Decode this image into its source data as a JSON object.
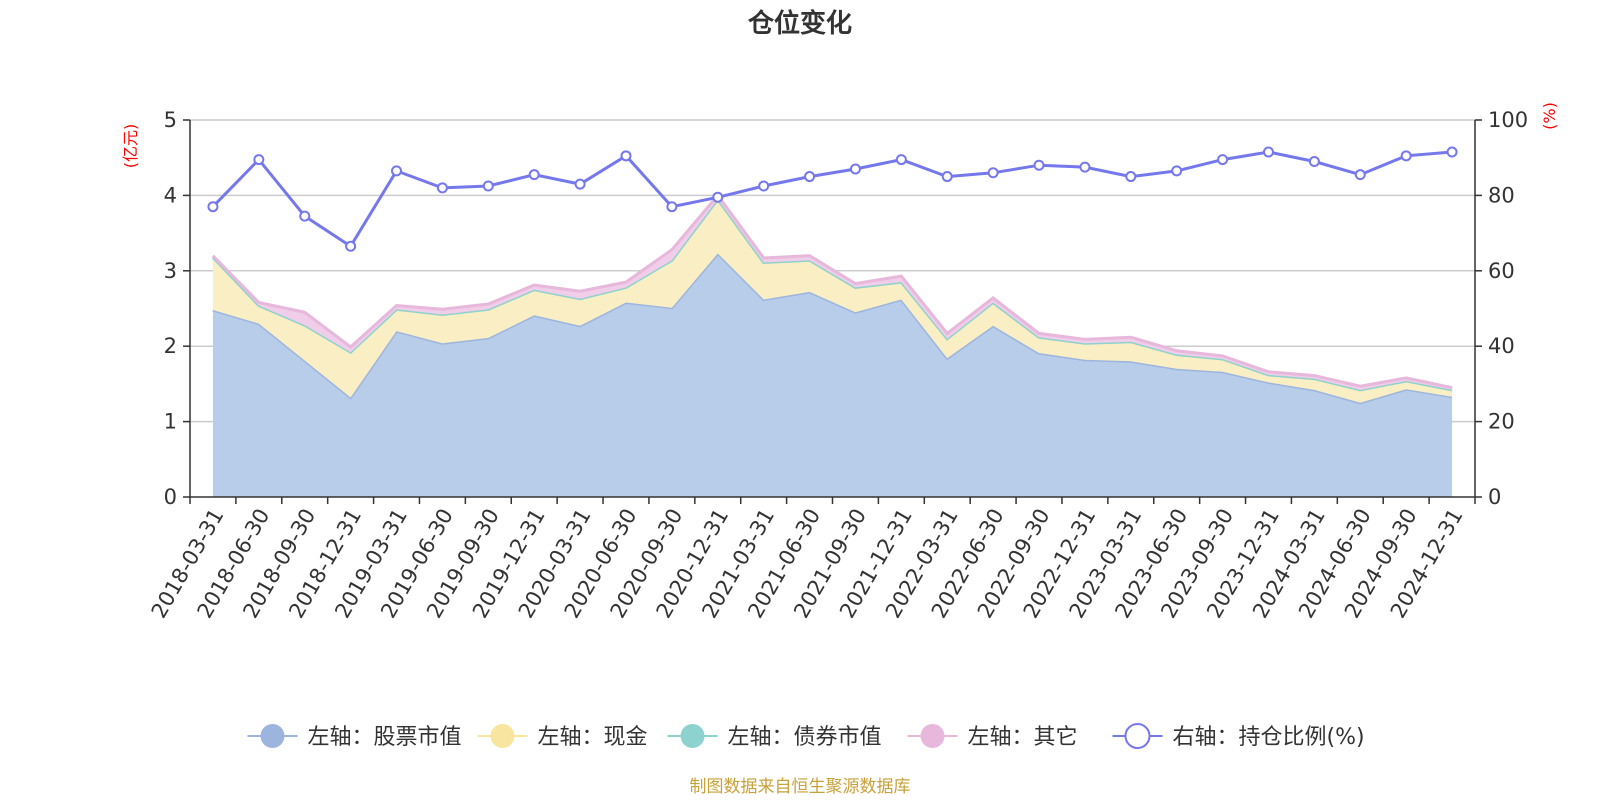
{
  "chart_data": {
    "type": "area",
    "title": "仓位变化",
    "left_axis": {
      "unit": "(亿元)",
      "ylim": [
        0,
        5
      ],
      "ticks": [
        "0",
        "1",
        "2",
        "3",
        "4",
        "5"
      ]
    },
    "right_axis": {
      "unit": "(%)",
      "ylim": [
        0,
        100
      ],
      "ticks": [
        "0",
        "20",
        "40",
        "60",
        "80",
        "100"
      ]
    },
    "categories": [
      "2018-03-31",
      "2018-06-30",
      "2018-09-30",
      "2018-12-31",
      "2019-03-31",
      "2019-06-30",
      "2019-09-30",
      "2019-12-31",
      "2020-03-31",
      "2020-06-30",
      "2020-09-30",
      "2020-12-31",
      "2021-03-31",
      "2021-06-30",
      "2021-09-30",
      "2021-12-31",
      "2022-03-31",
      "2022-06-30",
      "2022-09-30",
      "2022-12-31",
      "2023-03-31",
      "2023-06-30",
      "2023-09-30",
      "2023-12-31",
      "2024-03-31",
      "2024-06-30",
      "2024-09-30",
      "2024-12-31"
    ],
    "series": [
      {
        "name": "左轴：股票市值",
        "axis": "left",
        "stack": true,
        "color": "#9db5de",
        "fill": "#b8cdea",
        "values": [
          2.48,
          2.3,
          1.81,
          1.32,
          2.2,
          2.04,
          2.11,
          2.41,
          2.27,
          2.58,
          2.51,
          3.23,
          2.62,
          2.72,
          2.45,
          2.62,
          1.84,
          2.27,
          1.91,
          1.82,
          1.8,
          1.7,
          1.66,
          1.52,
          1.42,
          1.25,
          1.43,
          1.33
        ]
      },
      {
        "name": "左轴：现金",
        "axis": "left",
        "stack": true,
        "color": "#f8e6a0",
        "fill": "#faefc4",
        "values": [
          0.7,
          0.24,
          0.47,
          0.6,
          0.29,
          0.38,
          0.38,
          0.34,
          0.36,
          0.2,
          0.63,
          0.72,
          0.49,
          0.42,
          0.33,
          0.23,
          0.26,
          0.31,
          0.21,
          0.22,
          0.26,
          0.19,
          0.17,
          0.1,
          0.15,
          0.17,
          0.11,
          0.09
        ]
      },
      {
        "name": "左轴：债券市值",
        "axis": "left",
        "stack": true,
        "color": "#8ed2cf",
        "fill": "#b5e2df",
        "values": [
          0,
          0,
          0,
          0,
          0,
          0,
          0,
          0,
          0,
          0,
          0,
          0,
          0,
          0,
          0,
          0,
          0,
          0,
          0,
          0,
          0,
          0,
          0,
          0,
          0,
          0,
          0,
          0
        ]
      },
      {
        "name": "左轴：其它",
        "axis": "left",
        "stack": true,
        "color": "#e7b7dc",
        "fill": "#f0cde8",
        "values": [
          0.02,
          0.04,
          0.17,
          0.07,
          0.05,
          0.07,
          0.07,
          0.06,
          0.1,
          0.07,
          0.14,
          0.05,
          0.06,
          0.06,
          0.05,
          0.08,
          0.07,
          0.06,
          0.05,
          0.05,
          0.06,
          0.05,
          0.04,
          0.04,
          0.04,
          0.05,
          0.04,
          0.03
        ]
      },
      {
        "name": "右轴：持仓比例(%)",
        "axis": "right",
        "type": "line",
        "color": "#7478ec",
        "values": [
          77.0,
          89.5,
          74.5,
          66.5,
          86.5,
          82.0,
          82.5,
          85.5,
          83.0,
          90.5,
          77.0,
          79.5,
          82.5,
          85.0,
          87.0,
          89.5,
          85.0,
          86.0,
          88.0,
          87.5,
          85.0,
          86.5,
          89.5,
          91.5,
          89.0,
          85.5,
          90.5,
          91.5
        ]
      }
    ],
    "legend_position": "bottom-center",
    "grid": true
  },
  "footer": {
    "source": "制图数据来自恒生聚源数据库"
  }
}
